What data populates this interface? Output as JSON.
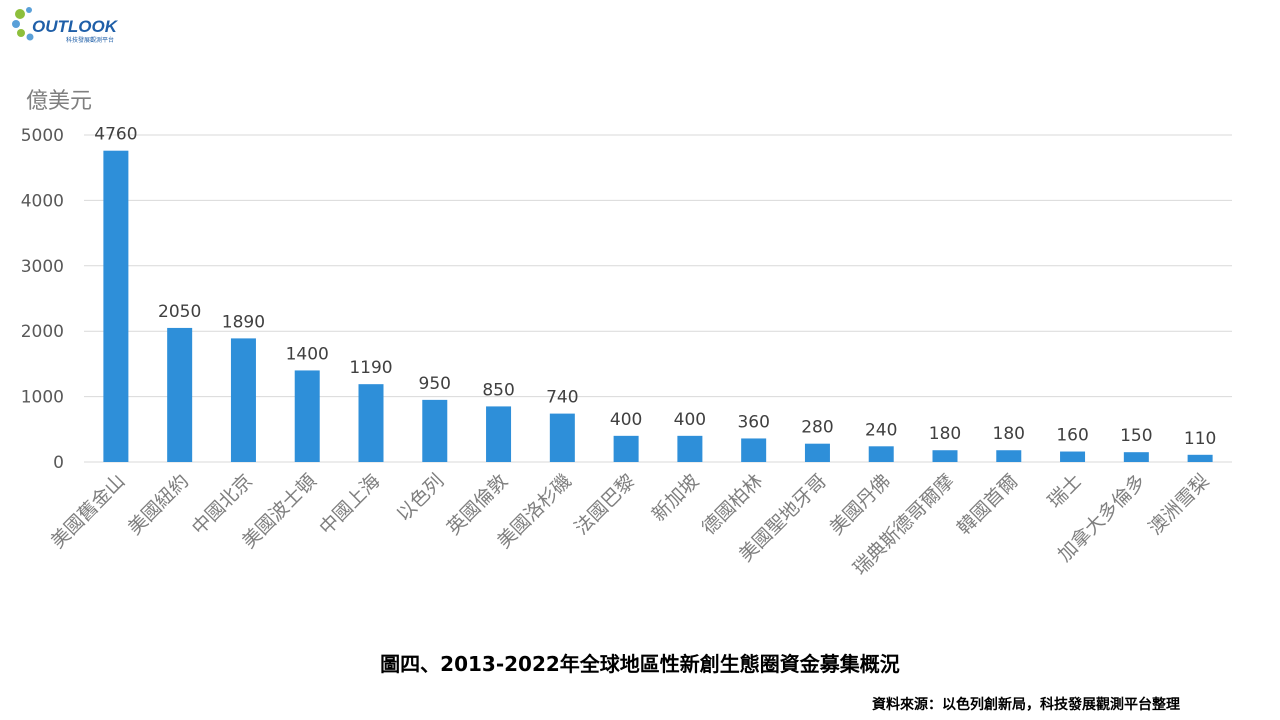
{
  "logo": {
    "text": "OUTLOOK",
    "subtext": "科技發展觀測平台"
  },
  "caption": "圖四、2013-2022年全球地區性新創生態圈資金募集概況",
  "source": "資料來源：以色列創新局，科技發展觀測平台整理",
  "colors": {
    "bar": "#2e8fd9",
    "logo_green": "#8dbf3c",
    "logo_blue": "#1f5fa8"
  },
  "chart_data": {
    "type": "bar",
    "title": "",
    "xlabel": "",
    "ylabel": "億美元",
    "ylim": [
      0,
      5000
    ],
    "yticks": [
      0,
      1000,
      2000,
      3000,
      4000,
      5000
    ],
    "grid": true,
    "categories": [
      "美國舊金山",
      "美國紐約",
      "中國北京",
      "美國波士頓",
      "中國上海",
      "以色列",
      "英國倫敦",
      "美國洛杉磯",
      "法國巴黎",
      "新加坡",
      "德國柏林",
      "美國聖地牙哥",
      "美國丹佛",
      "瑞典斯德哥爾摩",
      "韓國首爾",
      "瑞士",
      "加拿大多倫多",
      "澳洲雪梨"
    ],
    "values": [
      4760,
      2050,
      1890,
      1400,
      1190,
      950,
      850,
      740,
      400,
      400,
      360,
      280,
      240,
      180,
      180,
      160,
      150,
      110
    ]
  }
}
